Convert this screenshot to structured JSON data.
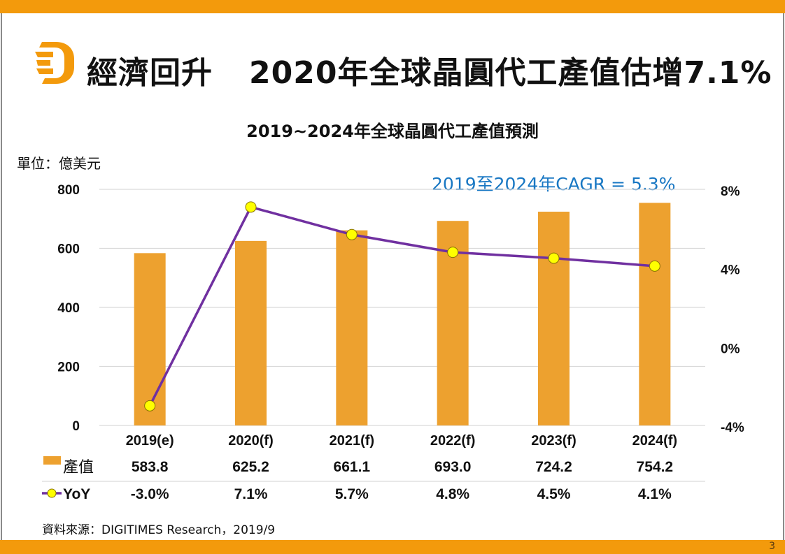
{
  "slide": {
    "headline_part1": "經濟回升",
    "headline_part2": "2020年全球晶圓代工產值估增7.1%",
    "page_number": "3",
    "logo": "digitimes-d-logo",
    "source": "資料來源：DIGITIMES Research，2019/9",
    "colors": {
      "banner": "#f39a0c",
      "bar": "#eda12f",
      "line": "#7030a0",
      "marker": "#ffff00",
      "cagr_text": "#1877c3"
    }
  },
  "chart_data": {
    "type": "bar",
    "title": "2019~2024年全球晶圓代工產值預測",
    "unit_label": "單位：億美元",
    "annotation": "2019至2024年CAGR = 5.3%",
    "categories": [
      "2019(e)",
      "2020(f)",
      "2021(f)",
      "2022(f)",
      "2023(f)",
      "2024(f)"
    ],
    "series": [
      {
        "name": "產值",
        "type": "bar",
        "axis": "left",
        "values": [
          583.8,
          625.2,
          661.1,
          693.0,
          724.2,
          754.2
        ],
        "labels": [
          "583.8",
          "625.2",
          "661.1",
          "693.0",
          "724.2",
          "754.2"
        ]
      },
      {
        "name": "YoY",
        "type": "line",
        "axis": "right",
        "values": [
          -3.0,
          7.1,
          5.7,
          4.8,
          4.5,
          4.1
        ],
        "labels": [
          "-3.0%",
          "7.1%",
          "5.7%",
          "4.8%",
          "4.5%",
          "4.1%"
        ]
      }
    ],
    "y_left": {
      "ylim": [
        0,
        800
      ],
      "ticks": [
        "0",
        "200",
        "400",
        "600",
        "800"
      ],
      "tick_values": [
        0,
        200,
        400,
        600,
        800
      ]
    },
    "y_right": {
      "ylim": [
        -4,
        8
      ],
      "ticks": [
        "-4%",
        "0%",
        "4%",
        "8%"
      ],
      "tick_values": [
        -4,
        0,
        4,
        8
      ]
    },
    "grid": true,
    "legend": "data-table-below"
  }
}
